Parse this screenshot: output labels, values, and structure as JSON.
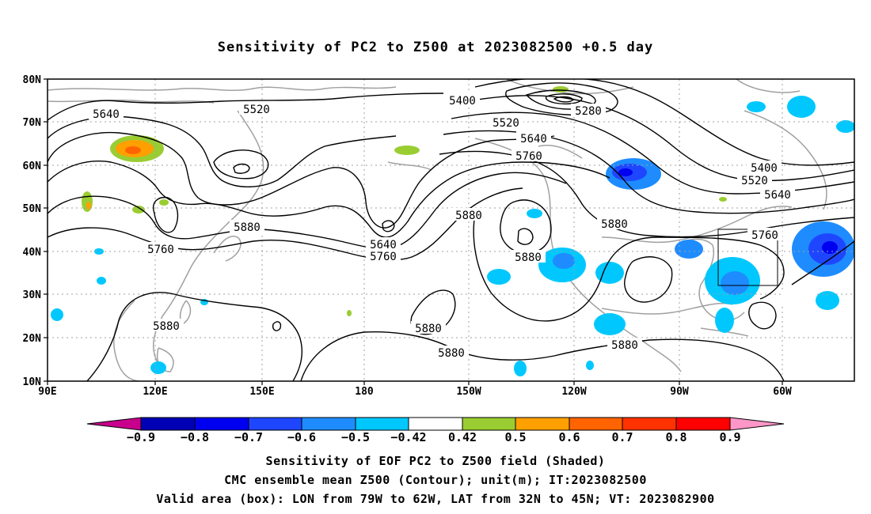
{
  "title": "Sensitivity of PC2 to Z500 at 2023082500 +0.5 day",
  "axes": {
    "lat_labels": [
      "80N",
      "70N",
      "60N",
      "50N",
      "40N",
      "30N",
      "20N",
      "10N"
    ],
    "lon_labels": [
      "90E",
      "120E",
      "150E",
      "180",
      "150W",
      "120W",
      "90W",
      "60W"
    ]
  },
  "contour_labels": [
    "5640",
    "5520",
    "5400",
    "5280",
    "5520",
    "5640",
    "5760",
    "5400",
    "5520",
    "5640",
    "5760",
    "5880",
    "5880",
    "5880",
    "5640",
    "5760",
    "5760",
    "5880",
    "5880",
    "5880",
    "5880",
    "5880"
  ],
  "colorbar": {
    "labels": [
      "-0.9",
      "-0.8",
      "-0.7",
      "-0.6",
      "-0.5",
      "-0.42",
      "0.42",
      "0.5",
      "0.6",
      "0.7",
      "0.8",
      "0.9"
    ],
    "colors": [
      "#c8008c",
      "#0000b4",
      "#0000f0",
      "#1e46ff",
      "#1e8cff",
      "#00c8ff",
      "#ffffff",
      "#9acd32",
      "#ffa000",
      "#ff6400",
      "#ff3200",
      "#ff0000",
      "#ff96c8"
    ]
  },
  "valid_box": {
    "lon_min": -79,
    "lon_max": -62,
    "lat_min": 32,
    "lat_max": 45
  },
  "captions": [
    "Sensitivity of EOF PC2 to Z500 field (Shaded)",
    "CMC ensemble mean Z500 (Contour); unit(m); IT:2023082500",
    "Valid area (box): LON from 79W to 62W, LAT from 32N to 45N; VT: 2023082900"
  ]
}
